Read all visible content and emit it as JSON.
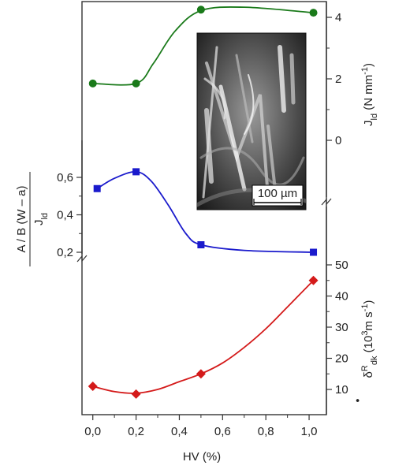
{
  "chart_data": {
    "type": "line",
    "x_axis": {
      "label": "HV (%)",
      "range": [
        -0.05,
        1.08
      ],
      "ticks": [
        0.0,
        0.2,
        0.4,
        0.6,
        0.8,
        1.0
      ],
      "tick_labels": [
        "0,0",
        "0,2",
        "0,4",
        "0,6",
        "0,8",
        "1,0"
      ]
    },
    "panels": [
      {
        "id": "jld",
        "axis_side": "right",
        "label_main": "J",
        "label_sub": "ld",
        "label_unit_open": " (N mm",
        "label_unit_sup": "-1",
        "label_unit_close": ")",
        "range": [
          -1.8,
          4.6
        ],
        "ticks": [
          0,
          2,
          4
        ],
        "tick_labels": [
          "0",
          "2",
          "4"
        ],
        "color": "#1a7a1a",
        "marker": "circle",
        "x": [
          0.0,
          0.2,
          0.5,
          1.02
        ],
        "y": [
          1.85,
          1.85,
          4.25,
          4.15
        ],
        "curve": [
          [
            0.0,
            1.85
          ],
          [
            0.2,
            1.85
          ],
          [
            0.28,
            2.5
          ],
          [
            0.38,
            3.55
          ],
          [
            0.5,
            4.22
          ],
          [
            0.7,
            4.33
          ],
          [
            1.02,
            4.15
          ]
        ]
      },
      {
        "id": "ratio",
        "axis_side": "left",
        "label_numerator": "A / B (W – a)",
        "label_denominator_main": "J",
        "label_denominator_sub": "ld",
        "range": [
          0.18,
          0.7
        ],
        "ticks": [
          0.2,
          0.4,
          0.6
        ],
        "tick_labels": [
          "0,2",
          "0,4",
          "0,6"
        ],
        "color": "#1a1acc",
        "marker": "square",
        "x": [
          0.02,
          0.2,
          0.5,
          1.02
        ],
        "y": [
          0.54,
          0.63,
          0.24,
          0.2
        ],
        "curve": [
          [
            0.02,
            0.54
          ],
          [
            0.1,
            0.595
          ],
          [
            0.2,
            0.63
          ],
          [
            0.27,
            0.58
          ],
          [
            0.35,
            0.45
          ],
          [
            0.43,
            0.3
          ],
          [
            0.5,
            0.24
          ],
          [
            0.7,
            0.21
          ],
          [
            1.02,
            0.2
          ]
        ]
      },
      {
        "id": "strain_rate",
        "axis_side": "right",
        "label_main": "δ",
        "label_dot": "•",
        "label_sup": "R",
        "label_sub": "dk",
        "label_unit_open": " (10",
        "label_unit_sup": "3",
        "label_unit_mid": "m s",
        "label_unit_sup2": "-1",
        "label_unit_close": ")",
        "range": [
          0,
          53
        ],
        "ticks": [
          10,
          20,
          30,
          40,
          50
        ],
        "tick_labels": [
          "10",
          "20",
          "30",
          "40",
          "50"
        ],
        "color": "#d41a1a",
        "marker": "diamond",
        "x": [
          0.0,
          0.2,
          0.5,
          1.02
        ],
        "y": [
          11,
          8.5,
          15,
          45
        ],
        "curve": [
          [
            0.0,
            11
          ],
          [
            0.1,
            9.3
          ],
          [
            0.2,
            8.8
          ],
          [
            0.3,
            10
          ],
          [
            0.4,
            12.5
          ],
          [
            0.5,
            15
          ],
          [
            0.6,
            18.5
          ],
          [
            0.7,
            23.5
          ],
          [
            0.8,
            29.5
          ],
          [
            0.9,
            36.5
          ],
          [
            1.02,
            45
          ]
        ]
      }
    ],
    "inset": {
      "type": "SEM micrograph",
      "scale_bar_label": "100 µm"
    }
  }
}
